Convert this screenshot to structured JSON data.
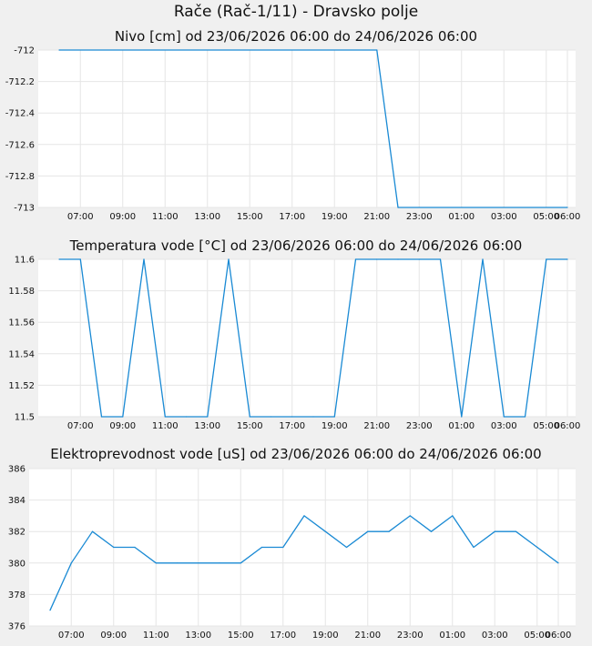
{
  "title": "Rače (Rač-1/11) - Dravsko polje",
  "chart_data": [
    {
      "type": "line",
      "title": "Nivo [cm] od 23/06/2026 06:00 do 24/06/2026 06:00",
      "xlabel": "",
      "ylabel": "",
      "xlim": [
        "23/06/2026 06:00",
        "24/06/2026 06:00"
      ],
      "ylim": [
        -713,
        -712
      ],
      "yticks": [
        -712,
        -712.2,
        -712.4,
        -712.6,
        -712.8,
        -713
      ],
      "ytick_labels": [
        "-712",
        "-712.2",
        "-712.4",
        "-712.6",
        "-712.8",
        "-713"
      ],
      "xticks": [
        "07:00",
        "09:00",
        "11:00",
        "13:00",
        "15:00",
        "17:00",
        "19:00",
        "21:00",
        "23:00",
        "01:00",
        "03:00",
        "05:00",
        "06:00"
      ],
      "grid": true,
      "color": "#1a8ad4",
      "series": [
        {
          "x": [
            "23/06/2026 06:00",
            "23/06/2026 21:00",
            "23/06/2026 22:00",
            "24/06/2026 06:00"
          ],
          "y": [
            -712,
            -712,
            -713,
            -713
          ]
        }
      ]
    },
    {
      "type": "line",
      "title": "Temperatura vode [°C] od 23/06/2026 06:00 do 24/06/2026 06:00",
      "xlabel": "",
      "ylabel": "",
      "xlim": [
        "23/06/2026 06:00",
        "24/06/2026 06:00"
      ],
      "ylim": [
        11.5,
        11.6
      ],
      "yticks": [
        11.6,
        11.58,
        11.56,
        11.54,
        11.52,
        11.5
      ],
      "ytick_labels": [
        "11.6",
        "11.58",
        "11.56",
        "11.54",
        "11.52",
        "11.5"
      ],
      "xticks": [
        "07:00",
        "09:00",
        "11:00",
        "13:00",
        "15:00",
        "17:00",
        "19:00",
        "21:00",
        "23:00",
        "01:00",
        "03:00",
        "05:00",
        "06:00"
      ],
      "grid": true,
      "color": "#1a8ad4",
      "series": [
        {
          "x": [
            "23/06/2026 06:00",
            "23/06/2026 07:00",
            "23/06/2026 08:00",
            "23/06/2026 09:00",
            "23/06/2026 10:00",
            "23/06/2026 11:00",
            "23/06/2026 12:00",
            "23/06/2026 13:00",
            "23/06/2026 14:00",
            "23/06/2026 15:00",
            "23/06/2026 16:00",
            "23/06/2026 17:00",
            "23/06/2026 18:00",
            "23/06/2026 19:00",
            "23/06/2026 20:00",
            "23/06/2026 21:00",
            "23/06/2026 22:00",
            "23/06/2026 23:00",
            "24/06/2026 00:00",
            "24/06/2026 01:00",
            "24/06/2026 02:00",
            "24/06/2026 03:00",
            "24/06/2026 04:00",
            "24/06/2026 05:00",
            "24/06/2026 06:00"
          ],
          "y": [
            11.6,
            11.6,
            11.5,
            11.5,
            11.6,
            11.5,
            11.5,
            11.5,
            11.6,
            11.5,
            11.5,
            11.5,
            11.5,
            11.5,
            11.6,
            11.6,
            11.6,
            11.6,
            11.6,
            11.5,
            11.6,
            11.5,
            11.5,
            11.6,
            11.6
          ]
        }
      ]
    },
    {
      "type": "line",
      "title": "Elektroprevodnost vode [uS] od 23/06/2026 06:00 do 24/06/2026 06:00",
      "xlabel": "",
      "ylabel": "",
      "xlim": [
        "23/06/2026 06:00",
        "24/06/2026 06:00"
      ],
      "ylim": [
        376,
        386
      ],
      "yticks": [
        386,
        384,
        382,
        380,
        378,
        376
      ],
      "ytick_labels": [
        "386",
        "384",
        "382",
        "380",
        "378",
        "376"
      ],
      "xticks": [
        "07:00",
        "09:00",
        "11:00",
        "13:00",
        "15:00",
        "17:00",
        "19:00",
        "21:00",
        "23:00",
        "01:00",
        "03:00",
        "05:00",
        "06:00"
      ],
      "grid": true,
      "color": "#1a8ad4",
      "series": [
        {
          "x": [
            "23/06/2026 06:00",
            "23/06/2026 07:00",
            "23/06/2026 08:00",
            "23/06/2026 09:00",
            "23/06/2026 10:00",
            "23/06/2026 11:00",
            "23/06/2026 12:00",
            "23/06/2026 13:00",
            "23/06/2026 14:00",
            "23/06/2026 15:00",
            "23/06/2026 16:00",
            "23/06/2026 17:00",
            "23/06/2026 18:00",
            "23/06/2026 19:00",
            "23/06/2026 20:00",
            "23/06/2026 21:00",
            "23/06/2026 22:00",
            "23/06/2026 23:00",
            "24/06/2026 00:00",
            "24/06/2026 01:00",
            "24/06/2026 02:00",
            "24/06/2026 03:00",
            "24/06/2026 04:00",
            "24/06/2026 05:00",
            "24/06/2026 06:00"
          ],
          "y": [
            377,
            380,
            382,
            381,
            381,
            380,
            380,
            380,
            380,
            380,
            381,
            381,
            383,
            382,
            381,
            382,
            382,
            383,
            382,
            383,
            381,
            382,
            382,
            381,
            380
          ]
        }
      ]
    }
  ]
}
